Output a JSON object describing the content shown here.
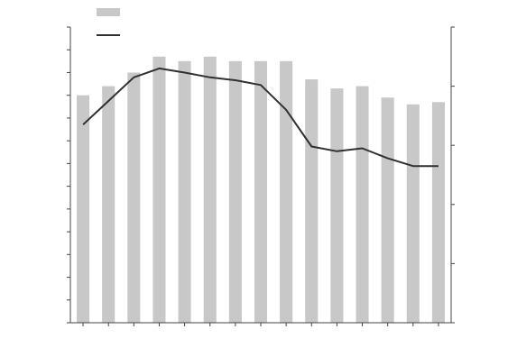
{
  "chart_data": {
    "type": "bar",
    "title": "",
    "xlabel": "",
    "ylabel_left": "",
    "ylabel_right": "",
    "grid": false,
    "legend_position": "top-left",
    "categories": [
      "",
      "",
      "",
      "",
      "",
      "",
      "",
      "",
      "",
      "",
      "",
      "",
      "",
      "",
      ""
    ],
    "series": [
      {
        "name": "",
        "type": "bar",
        "axis": "left",
        "color": "#c8c8c8",
        "values": [
          50,
          52,
          55,
          58.5,
          57.5,
          58.5,
          57.5,
          57.5,
          57.5,
          53.5,
          51.5,
          52,
          49.5,
          48,
          48.5
        ]
      },
      {
        "name": "",
        "type": "line",
        "axis": "right",
        "color": "#303030",
        "values": [
          3.35,
          3.75,
          4.15,
          4.3,
          4.23,
          4.15,
          4.1,
          4.02,
          3.6,
          2.98,
          2.9,
          2.95,
          2.78,
          2.65,
          2.65
        ]
      }
    ],
    "left_axis": {
      "ylim": [
        0,
        65
      ],
      "ticks": [
        0,
        5,
        10,
        15,
        20,
        25,
        30,
        35,
        40,
        45,
        50,
        55,
        60,
        65
      ],
      "tick_labels": [
        "",
        "",
        "",
        "",
        "",
        "",
        "",
        "",
        "",
        "",
        "",
        "",
        "",
        ""
      ]
    },
    "right_axis": {
      "ylim": [
        0,
        5
      ],
      "ticks": [
        0,
        1,
        2,
        3,
        4,
        5
      ],
      "tick_labels": [
        "",
        "",
        "",
        "",
        "",
        ""
      ]
    }
  }
}
